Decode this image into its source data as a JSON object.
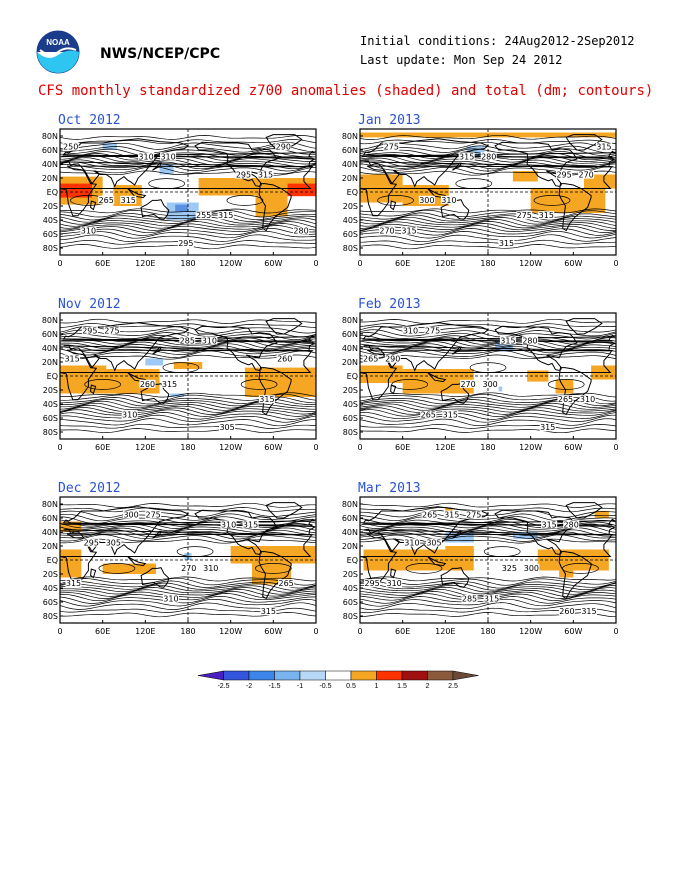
{
  "header": {
    "org": "NWS/NCEP/CPC",
    "initial_conditions": "Initial conditions: 24Aug2012-2Sep2012",
    "last_update": "Last update: Mon Sep 24 2012",
    "title": "CFS monthly standardized z700 anomalies (shaded) and total (dm; contours)",
    "logo": "noaa-logo"
  },
  "axes": {
    "lon_ticks": [
      "0",
      "60E",
      "120E",
      "180",
      "120W",
      "60W",
      "0"
    ],
    "lat_ticks": [
      "80N",
      "60N",
      "40N",
      "20N",
      "EQ",
      "20S",
      "40S",
      "60S",
      "80S"
    ]
  },
  "colors": {
    "title": "#e00000",
    "panel_title": "#2a52d6",
    "pos_1": "#f5a623",
    "pos_15": "#ff3300",
    "neg_1": "#9ec9f5",
    "neg_15": "#5b8fe0"
  },
  "panels": [
    {
      "title": "Oct 2012",
      "contour_labels": [
        "250",
        "310",
        "315",
        "315",
        "315",
        "310",
        "295",
        "290",
        "310",
        "295",
        "265",
        "255",
        "280"
      ],
      "anomalies": [
        {
          "sign": "pos",
          "level": 1,
          "lon": [
            0,
            60
          ],
          "lat": [
            22,
            -18
          ]
        },
        {
          "sign": "pos",
          "level": 1.5,
          "lon": [
            0,
            45
          ],
          "lat": [
            12,
            -8
          ]
        },
        {
          "sign": "pos",
          "level": 1,
          "lon": [
            75,
            115
          ],
          "lat": [
            10,
            -20
          ]
        },
        {
          "sign": "pos",
          "level": 1,
          "lon": [
            195,
            360
          ],
          "lat": [
            20,
            -5
          ]
        },
        {
          "sign": "pos",
          "level": 1.5,
          "lon": [
            320,
            360
          ],
          "lat": [
            12,
            -6
          ]
        },
        {
          "sign": "pos",
          "level": 1,
          "lon": [
            275,
            320
          ],
          "lat": [
            -5,
            -35
          ]
        },
        {
          "sign": "neg",
          "level": 1,
          "lon": [
            150,
            195
          ],
          "lat": [
            -15,
            -40
          ]
        },
        {
          "sign": "neg",
          "level": 1.5,
          "lon": [
            162,
            180
          ],
          "lat": [
            -18,
            -28
          ]
        },
        {
          "sign": "neg",
          "level": 1,
          "lon": [
            140,
            160
          ],
          "lat": [
            40,
            25
          ]
        },
        {
          "sign": "neg",
          "level": 1,
          "lon": [
            60,
            80
          ],
          "lat": [
            70,
            60
          ]
        }
      ]
    },
    {
      "title": "Jan 2013",
      "contour_labels": [
        "275",
        "280",
        "270",
        "310",
        "315",
        "315",
        "315",
        "315",
        "315",
        "295",
        "300",
        "275",
        "270"
      ],
      "anomalies": [
        {
          "sign": "pos",
          "level": 1,
          "lon": [
            0,
            360
          ],
          "lat": [
            85,
            78
          ]
        },
        {
          "sign": "pos",
          "level": 1,
          "lon": [
            0,
            60
          ],
          "lat": [
            25,
            -15
          ]
        },
        {
          "sign": "pos",
          "level": 1,
          "lon": [
            60,
            125
          ],
          "lat": [
            10,
            -20
          ]
        },
        {
          "sign": "pos",
          "level": 1,
          "lon": [
            215,
            250
          ],
          "lat": [
            30,
            15
          ]
        },
        {
          "sign": "pos",
          "level": 1,
          "lon": [
            240,
            345
          ],
          "lat": [
            5,
            -30
          ]
        },
        {
          "sign": "pos",
          "level": 1,
          "lon": [
            315,
            360
          ],
          "lat": [
            25,
            5
          ]
        },
        {
          "sign": "neg",
          "level": 1,
          "lon": [
            150,
            175
          ],
          "lat": [
            65,
            50
          ]
        }
      ]
    },
    {
      "title": "Nov 2012",
      "contour_labels": [
        "275",
        "310",
        "315",
        "315",
        "315",
        "310",
        "305",
        "295",
        "285",
        "260",
        "260"
      ],
      "anomalies": [
        {
          "sign": "pos",
          "level": 1,
          "lon": [
            0,
            65
          ],
          "lat": [
            15,
            -25
          ]
        },
        {
          "sign": "pos",
          "level": 1,
          "lon": [
            60,
            140
          ],
          "lat": [
            10,
            -25
          ]
        },
        {
          "sign": "pos",
          "level": 1,
          "lon": [
            160,
            200
          ],
          "lat": [
            20,
            10
          ]
        },
        {
          "sign": "pos",
          "level": 1,
          "lon": [
            260,
            360
          ],
          "lat": [
            12,
            -30
          ]
        },
        {
          "sign": "neg",
          "level": 1,
          "lon": [
            120,
            145
          ],
          "lat": [
            25,
            15
          ]
        },
        {
          "sign": "neg",
          "level": 1,
          "lon": [
            155,
            175
          ],
          "lat": [
            -25,
            -30
          ]
        }
      ]
    },
    {
      "title": "Feb 2013",
      "contour_labels": [
        "275",
        "280",
        "290",
        "300",
        "310",
        "315",
        "315",
        "310",
        "315",
        "265",
        "270",
        "265",
        "265"
      ],
      "anomalies": [
        {
          "sign": "pos",
          "level": 1,
          "lon": [
            0,
            60
          ],
          "lat": [
            15,
            -10
          ]
        },
        {
          "sign": "pos",
          "level": 1,
          "lon": [
            60,
            160
          ],
          "lat": [
            10,
            -25
          ]
        },
        {
          "sign": "pos",
          "level": 1,
          "lon": [
            235,
            265
          ],
          "lat": [
            8,
            -8
          ]
        },
        {
          "sign": "pos",
          "level": 1,
          "lon": [
            275,
            300
          ],
          "lat": [
            -5,
            -25
          ]
        },
        {
          "sign": "pos",
          "level": 1,
          "lon": [
            325,
            360
          ],
          "lat": [
            15,
            -5
          ]
        },
        {
          "sign": "neg",
          "level": 1,
          "lon": [
            190,
            215
          ],
          "lat": [
            50,
            35
          ]
        },
        {
          "sign": "neg",
          "level": 1,
          "lon": [
            195,
            200
          ],
          "lat": [
            -15,
            -22
          ]
        }
      ]
    },
    {
      "title": "Dec 2012",
      "contour_labels": [
        "275",
        "315",
        "305",
        "310",
        "315",
        "310",
        "315",
        "300",
        "310",
        "295",
        "270",
        "265"
      ],
      "anomalies": [
        {
          "sign": "pos",
          "level": 1,
          "lon": [
            0,
            30
          ],
          "lat": [
            15,
            -25
          ]
        },
        {
          "sign": "pos",
          "level": 1,
          "lon": [
            60,
            135
          ],
          "lat": [
            -5,
            -20
          ]
        },
        {
          "sign": "pos",
          "level": 1,
          "lon": [
            240,
            360
          ],
          "lat": [
            20,
            -5
          ]
        },
        {
          "sign": "pos",
          "level": 1,
          "lon": [
            270,
            325
          ],
          "lat": [
            -5,
            -35
          ]
        },
        {
          "sign": "pos",
          "level": 1,
          "lon": [
            0,
            30
          ],
          "lat": [
            55,
            40
          ]
        },
        {
          "sign": "neg",
          "level": 1,
          "lon": [
            175,
            185
          ],
          "lat": [
            10,
            0
          ]
        }
      ]
    },
    {
      "title": "Mar 2013",
      "contour_labels": [
        "275",
        "280",
        "305",
        "300",
        "310",
        "315",
        "315",
        "315",
        "315",
        "310",
        "325",
        "295",
        "285",
        "260",
        "265"
      ],
      "anomalies": [
        {
          "sign": "pos",
          "level": 1,
          "lon": [
            5,
            160
          ],
          "lat": [
            15,
            -15
          ]
        },
        {
          "sign": "pos",
          "level": 1,
          "lon": [
            120,
            160
          ],
          "lat": [
            20,
            0
          ]
        },
        {
          "sign": "pos",
          "level": 1,
          "lon": [
            250,
            350
          ],
          "lat": [
            15,
            -15
          ]
        },
        {
          "sign": "pos",
          "level": 1,
          "lon": [
            280,
            300
          ],
          "lat": [
            -15,
            -25
          ]
        },
        {
          "sign": "pos",
          "level": 1,
          "lon": [
            120,
            130
          ],
          "lat": [
            75,
            68
          ]
        },
        {
          "sign": "pos",
          "level": 1,
          "lon": [
            330,
            350
          ],
          "lat": [
            70,
            60
          ]
        },
        {
          "sign": "neg",
          "level": 1,
          "lon": [
            120,
            160
          ],
          "lat": [
            40,
            25
          ]
        },
        {
          "sign": "neg",
          "level": 1,
          "lon": [
            215,
            250
          ],
          "lat": [
            40,
            30
          ]
        }
      ]
    }
  ],
  "colorbar": {
    "labels": [
      "-2.5",
      "-2",
      "-1.5",
      "-1",
      "-0.5",
      "0.5",
      "1",
      "1.5",
      "2",
      "2.5"
    ],
    "colors": [
      "#4b1fbf",
      "#3355dd",
      "#3d85e8",
      "#7ab4f0",
      "#b7d8f7",
      "#ffffff",
      "#f5a623",
      "#ff3300",
      "#a01010",
      "#8b5a3c",
      "#6b4a3a"
    ]
  }
}
